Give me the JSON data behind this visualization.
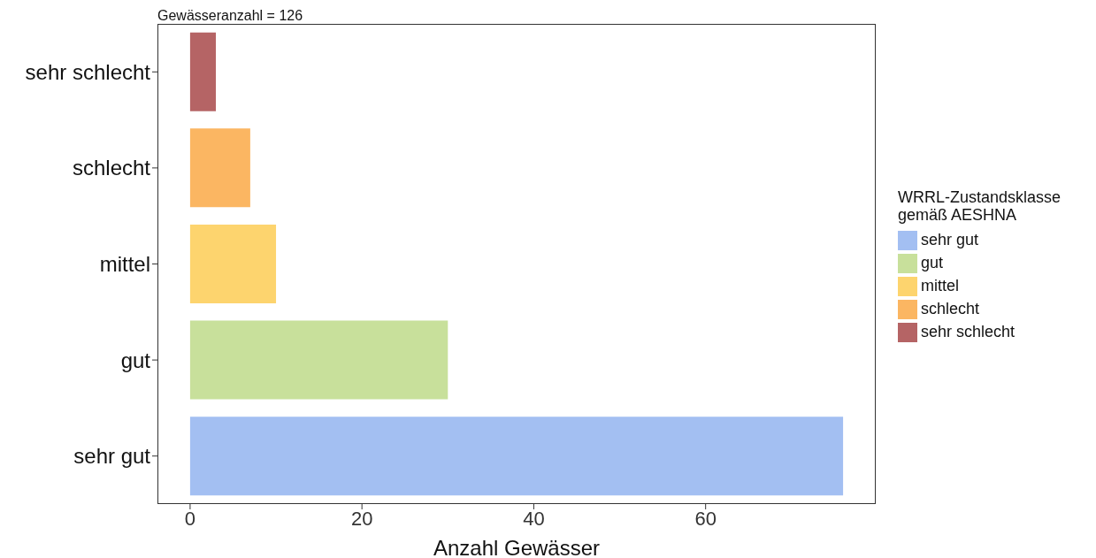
{
  "chart_data": {
    "type": "bar",
    "orientation": "horizontal",
    "stacked": true,
    "title": "Gewässeranzahl = 126",
    "xlabel": "Anzahl Gewässer",
    "legend_title": "WRRL-Zustandsklasse\ngemäß AESHNA",
    "categories": [
      "sehr schlecht",
      "schlecht",
      "mittel",
      "gut",
      "sehr gut"
    ],
    "series": [
      {
        "name": "sehr gut",
        "color": "#a3bff2",
        "values": [
          null,
          null,
          null,
          null,
          76
        ]
      },
      {
        "name": "gut",
        "color": "#c8e09b",
        "values": [
          null,
          null,
          null,
          30,
          null
        ]
      },
      {
        "name": "mittel",
        "color": "#fdd46e",
        "values": [
          null,
          null,
          10,
          null,
          null
        ]
      },
      {
        "name": "schlecht",
        "color": "#fbb662",
        "values": [
          null,
          7,
          null,
          null,
          null
        ]
      },
      {
        "name": "sehr schlecht",
        "color": "#b56465",
        "values": [
          3,
          null,
          null,
          null,
          null
        ]
      }
    ],
    "xlim": [
      -3.8,
      79.8
    ],
    "xticks": [
      0,
      20,
      40,
      60
    ],
    "grid": false,
    "legend": "right"
  }
}
